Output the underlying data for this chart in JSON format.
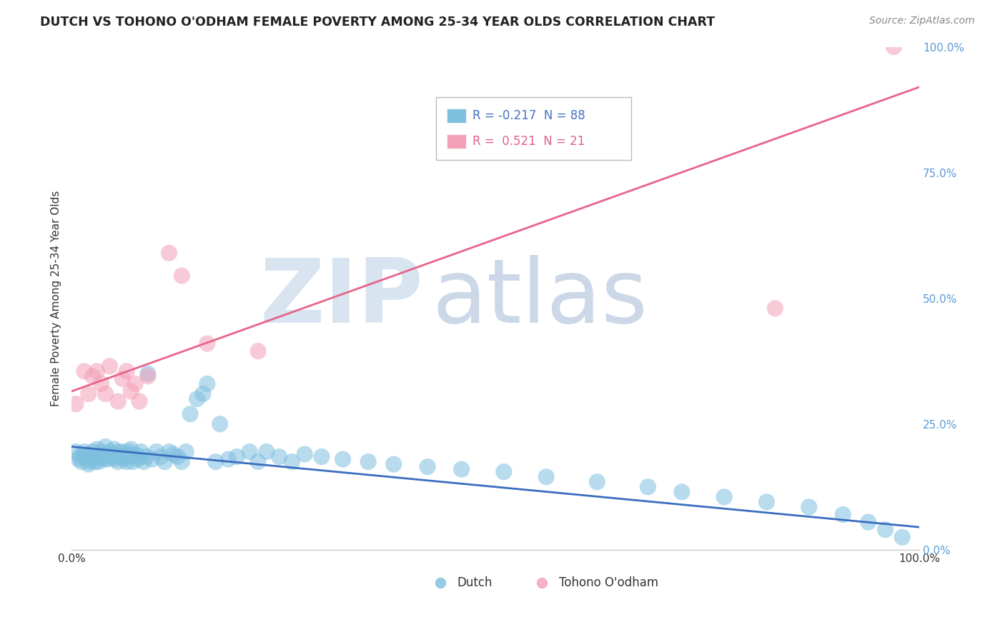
{
  "title": "DUTCH VS TOHONO O'ODHAM FEMALE POVERTY AMONG 25-34 YEAR OLDS CORRELATION CHART",
  "source": "Source: ZipAtlas.com",
  "ylabel": "Female Poverty Among 25-34 Year Olds",
  "ytick_labels": [
    "0.0%",
    "25.0%",
    "50.0%",
    "75.0%",
    "100.0%"
  ],
  "ytick_values": [
    0.0,
    0.25,
    0.5,
    0.75,
    1.0
  ],
  "xtick_labels": [
    "0.0%",
    "100.0%"
  ],
  "xtick_values": [
    0.0,
    1.0
  ],
  "dutch_R": -0.217,
  "dutch_N": 88,
  "tohono_R": 0.521,
  "tohono_N": 21,
  "dutch_color": "#7fbfdf",
  "tohono_color": "#f4a0b8",
  "dutch_line_color": "#3a6ebf",
  "tohono_line_color": "#e8638a",
  "dutch_line_style": "solid",
  "tohono_line_style": "solid",
  "background_color": "#ffffff",
  "grid_color": "#d8d8d8",
  "legend_dutch_text_color": "#4472c4",
  "legend_tohono_text_color": "#e06090",
  "watermark_zip_color": "#d8e4f0",
  "watermark_atlas_color": "#ccd8e8",
  "dutch_x": [
    0.005,
    0.008,
    0.01,
    0.012,
    0.015,
    0.015,
    0.018,
    0.02,
    0.02,
    0.022,
    0.025,
    0.025,
    0.028,
    0.03,
    0.03,
    0.032,
    0.035,
    0.035,
    0.038,
    0.04,
    0.04,
    0.042,
    0.045,
    0.045,
    0.048,
    0.05,
    0.05,
    0.052,
    0.055,
    0.055,
    0.058,
    0.06,
    0.06,
    0.062,
    0.065,
    0.065,
    0.068,
    0.07,
    0.07,
    0.072,
    0.075,
    0.078,
    0.08,
    0.082,
    0.085,
    0.088,
    0.09,
    0.095,
    0.1,
    0.105,
    0.11,
    0.115,
    0.12,
    0.125,
    0.13,
    0.135,
    0.14,
    0.148,
    0.155,
    0.16,
    0.17,
    0.175,
    0.185,
    0.195,
    0.21,
    0.22,
    0.23,
    0.245,
    0.26,
    0.275,
    0.295,
    0.32,
    0.35,
    0.38,
    0.42,
    0.46,
    0.51,
    0.56,
    0.62,
    0.68,
    0.72,
    0.77,
    0.82,
    0.87,
    0.91,
    0.94,
    0.96,
    0.98
  ],
  "dutch_y": [
    0.195,
    0.18,
    0.185,
    0.175,
    0.185,
    0.195,
    0.18,
    0.17,
    0.19,
    0.175,
    0.185,
    0.195,
    0.175,
    0.2,
    0.185,
    0.175,
    0.185,
    0.195,
    0.18,
    0.19,
    0.205,
    0.18,
    0.195,
    0.185,
    0.19,
    0.2,
    0.18,
    0.185,
    0.195,
    0.175,
    0.185,
    0.195,
    0.185,
    0.18,
    0.19,
    0.175,
    0.195,
    0.185,
    0.2,
    0.175,
    0.19,
    0.18,
    0.185,
    0.195,
    0.175,
    0.185,
    0.35,
    0.18,
    0.195,
    0.185,
    0.175,
    0.195,
    0.19,
    0.185,
    0.175,
    0.195,
    0.27,
    0.3,
    0.31,
    0.33,
    0.175,
    0.25,
    0.18,
    0.185,
    0.195,
    0.175,
    0.195,
    0.185,
    0.175,
    0.19,
    0.185,
    0.18,
    0.175,
    0.17,
    0.165,
    0.16,
    0.155,
    0.145,
    0.135,
    0.125,
    0.115,
    0.105,
    0.095,
    0.085,
    0.07,
    0.055,
    0.04,
    0.025
  ],
  "tohono_x": [
    0.005,
    0.015,
    0.02,
    0.025,
    0.03,
    0.035,
    0.04,
    0.045,
    0.055,
    0.06,
    0.065,
    0.07,
    0.075,
    0.08,
    0.09,
    0.115,
    0.13,
    0.16,
    0.22,
    0.83,
    0.97
  ],
  "tohono_y": [
    0.29,
    0.355,
    0.31,
    0.345,
    0.355,
    0.33,
    0.31,
    0.365,
    0.295,
    0.34,
    0.355,
    0.315,
    0.33,
    0.295,
    0.345,
    0.59,
    0.545,
    0.41,
    0.395,
    0.48,
    1.0
  ],
  "dutch_line_x0": 0.0,
  "dutch_line_y0": 0.205,
  "dutch_line_x1": 1.0,
  "dutch_line_y1": 0.045,
  "tohono_line_x0": 0.0,
  "tohono_line_y0": 0.315,
  "tohono_line_x1": 1.0,
  "tohono_line_y1": 0.92
}
